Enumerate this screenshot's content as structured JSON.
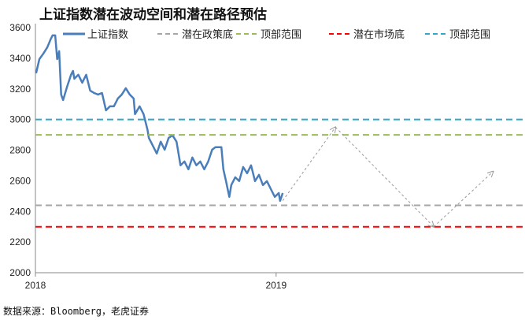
{
  "chart_data": {
    "type": "line",
    "title": "上证指数潜在波动空间和潜在路径预估",
    "source": "数据来源：Bloomberg，老虎证券",
    "xlabel": "",
    "ylabel": "",
    "ylim": [
      2000,
      3600
    ],
    "yticks": [
      2000,
      2200,
      2400,
      2600,
      2800,
      3000,
      3200,
      3400,
      3600
    ],
    "xlim_days_from_2018": [
      0,
      740
    ],
    "xticks": [
      {
        "day": 0,
        "label": "2018"
      },
      {
        "day": 365,
        "label": "2019"
      }
    ],
    "legend_position": "top",
    "series": [
      {
        "name": "上证指数",
        "color": "#4a7ebb",
        "style": "solid",
        "x": [
          1,
          6,
          12,
          18,
          23,
          26,
          30,
          33,
          36,
          39,
          42,
          48,
          54,
          57,
          59,
          65,
          71,
          77,
          83,
          89,
          95,
          101,
          107,
          113,
          119,
          125,
          131,
          137,
          143,
          149,
          151,
          158,
          164,
          170,
          172,
          178,
          184,
          190,
          196,
          202,
          208,
          214,
          220,
          226,
          232,
          238,
          244,
          250,
          256,
          262,
          268,
          273,
          282,
          285,
          289,
          294,
          297,
          303,
          309,
          315,
          321,
          327,
          333,
          339,
          345,
          351,
          357,
          363,
          369,
          371,
          375
        ],
        "y": [
          3302,
          3394,
          3430,
          3471,
          3523,
          3549,
          3549,
          3394,
          3446,
          3163,
          3127,
          3214,
          3292,
          3317,
          3266,
          3292,
          3240,
          3292,
          3189,
          3173,
          3163,
          3173,
          3060,
          3086,
          3086,
          3137,
          3163,
          3204,
          3163,
          3137,
          3035,
          3086,
          3035,
          2932,
          2880,
          2829,
          2778,
          2855,
          2803,
          2880,
          2896,
          2855,
          2701,
          2726,
          2675,
          2752,
          2701,
          2726,
          2675,
          2726,
          2803,
          2819,
          2819,
          2675,
          2598,
          2495,
          2572,
          2623,
          2598,
          2690,
          2649,
          2701,
          2598,
          2639,
          2572,
          2598,
          2546,
          2495,
          2520,
          2469,
          2520
        ]
      },
      {
        "name": "潜在政策底",
        "color": "#a6a6a6",
        "style": "dashed",
        "value": 2440
      },
      {
        "name": "顶部范围",
        "color": "#9bbb59",
        "style": "dashed",
        "value": 2900
      },
      {
        "name": "潜在市场底",
        "color": "#ff0000",
        "style": "dashed",
        "value": 2300
      },
      {
        "name": "顶部范围",
        "color": "#31a9c4",
        "style": "dashed",
        "value": 3000
      }
    ],
    "projected_path": {
      "color": "#999999",
      "x": [
        375,
        455,
        604,
        694
      ],
      "y": [
        2470,
        2950,
        2300,
        2660
      ]
    }
  }
}
